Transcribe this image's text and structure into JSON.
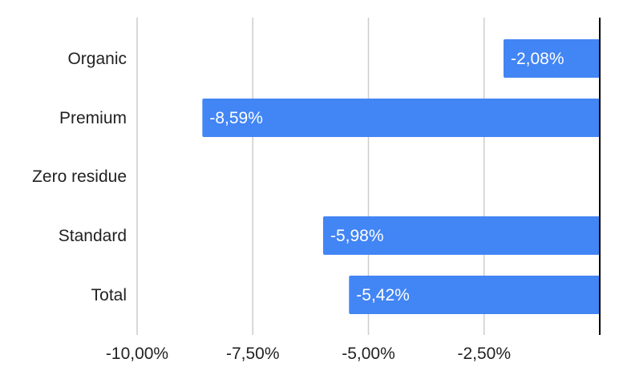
{
  "chart_data": {
    "type": "bar",
    "orientation": "horizontal",
    "categories": [
      "Organic",
      "Premium",
      "Zero residue",
      "Standard",
      "Total"
    ],
    "series": [
      {
        "values": [
          -2.08,
          -8.59,
          null,
          -5.98,
          -5.42
        ],
        "value_labels": [
          "-2,08%",
          "-8,59%",
          "",
          "-5,98%",
          "-5,42%"
        ]
      }
    ],
    "xlim": [
      -10,
      0
    ],
    "x_ticks": [
      -10,
      -7.5,
      -5,
      -2.5
    ],
    "x_tick_labels": [
      "-10,00%",
      "-7,50%",
      "-5,00%",
      "-2,50%"
    ],
    "grid": true,
    "colors": {
      "bar": "#4285f4",
      "grid": "#cccccc",
      "axis": "#000000"
    }
  }
}
